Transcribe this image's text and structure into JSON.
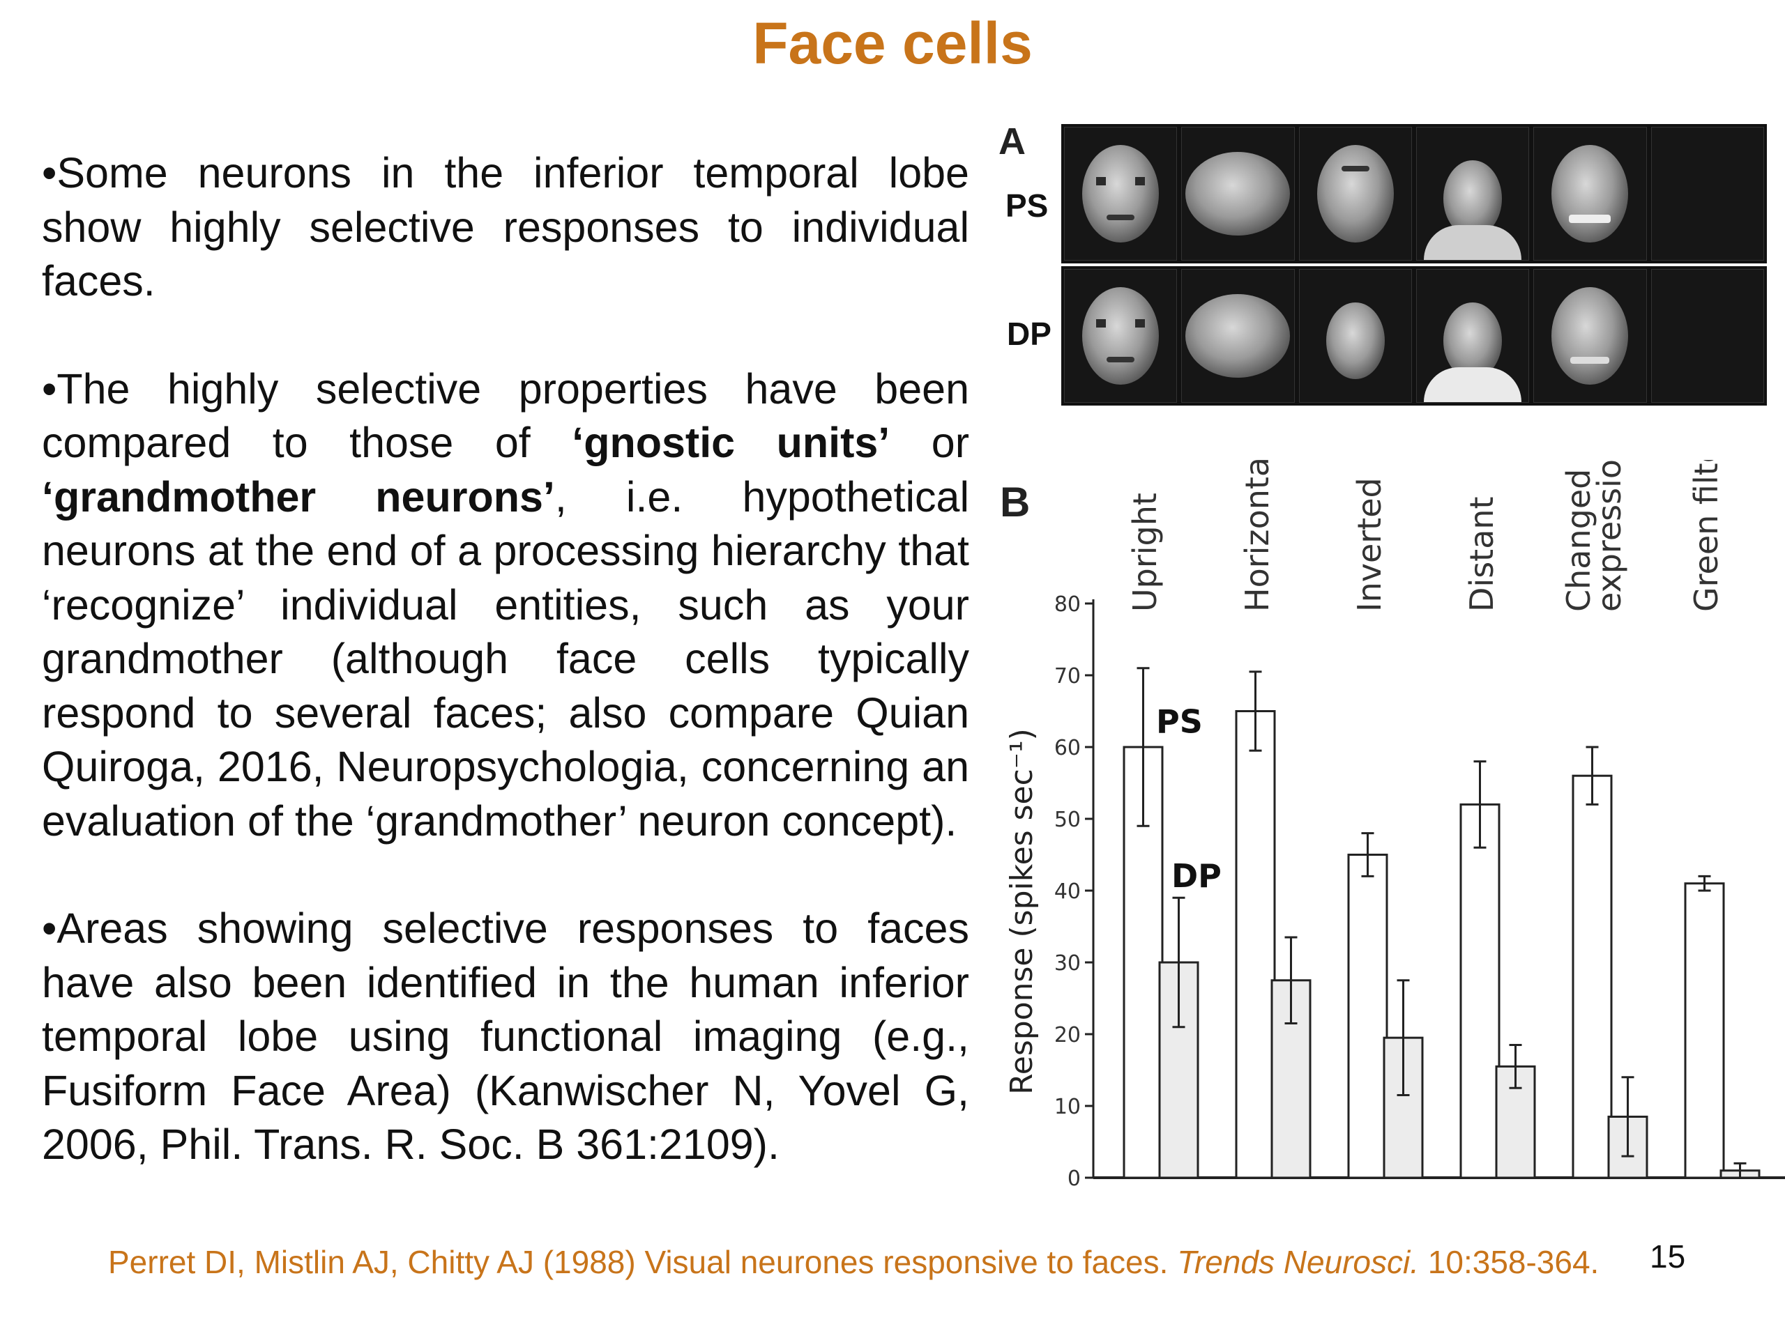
{
  "slide": {
    "title": "Face cells",
    "page_number": "15"
  },
  "text": {
    "p1": "•Some neurons in the inferior temporal lobe show highly selective responses to individual faces.",
    "p2_a": "•The highly selective properties have been compared to those of ",
    "p2_b": "‘gnostic units’",
    "p2_c": " or ",
    "p2_d": "‘grandmother neurons’",
    "p2_e": ", i.e. hypothetical neurons at the end of a processing hierarchy that ‘recognize’ individual entities, such as your grandmother (although face cells typically respond to several faces; also compare Quian Quiroga, 2016, Neuropsychologia, concerning an evaluation of the ‘grandmother’ neuron concept).",
    "p3": "•Areas showing selective responses to faces have also been identified in the human inferior temporal lobe using functional imaging (e.g., Fusiform Face Area) (Kanwischer N, Yovel G, 2006, Phil. Trans. R. Soc. B 361:2109)."
  },
  "panel_a": {
    "letter": "A",
    "row_labels": [
      "PS",
      "DP"
    ]
  },
  "panel_b": {
    "letter": "B"
  },
  "chart_data": {
    "type": "bar",
    "categories": [
      "Upright",
      "Horizontal",
      "Inverted",
      "Distant",
      "Changed\nexpression",
      "Green filter"
    ],
    "category_lines": [
      [
        "Upright"
      ],
      [
        "Horizontal"
      ],
      [
        "Inverted"
      ],
      [
        "Distant"
      ],
      [
        "Changed",
        "expression"
      ],
      [
        "Green filter"
      ]
    ],
    "series": [
      {
        "name": "PS",
        "values": [
          60,
          65,
          45,
          52,
          56,
          41
        ],
        "errors": [
          11,
          5.5,
          3,
          6,
          4,
          1
        ],
        "color": "#ffffff"
      },
      {
        "name": "DP",
        "values": [
          30,
          27.5,
          19.5,
          15.5,
          8.5,
          1
        ],
        "errors": [
          9,
          6,
          8,
          3,
          5.5,
          1
        ],
        "color": "#ececec"
      }
    ],
    "ylabel": "Response (spikes sec⁻¹)",
    "ylim": [
      0,
      80
    ],
    "yticks": [
      0,
      10,
      20,
      30,
      40,
      50,
      60,
      70,
      80
    ],
    "grid": false
  },
  "citation": {
    "text_a": "Perret DI, Mistlin AJ, Chitty AJ (1988) Visual neurones responsive to faces. ",
    "journal": "Trends Neurosci.",
    "text_b": " 10:358-364."
  }
}
